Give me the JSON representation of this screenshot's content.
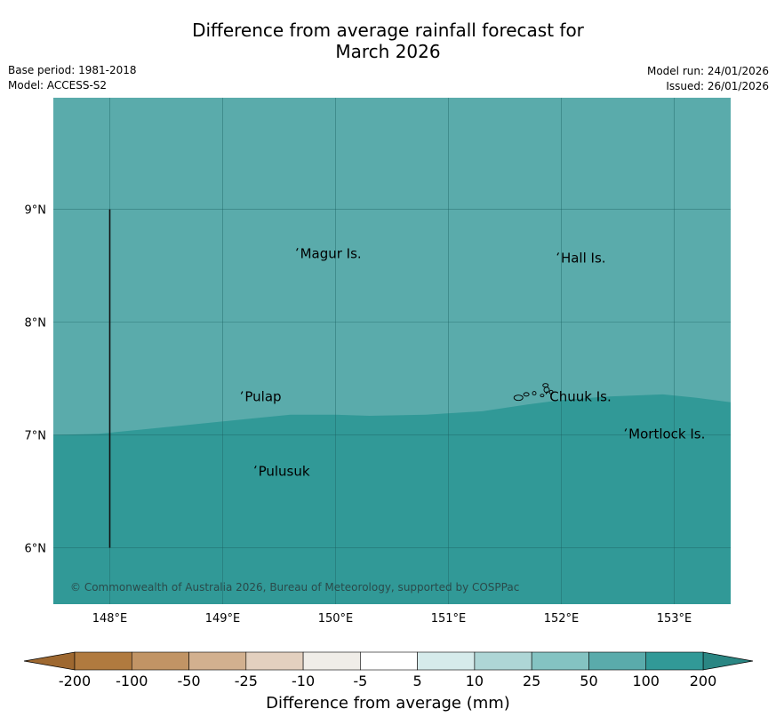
{
  "header": {
    "title_line1": "Difference from average rainfall forecast for",
    "title_line2": "March 2026",
    "base_period": "Base period: 1981-2018",
    "model": "Model: ACCESS-S2",
    "model_run": "Model run: 24/01/2026",
    "issued": "Issued: 26/01/2026"
  },
  "map": {
    "copyright": "© Commonwealth of Australia 2026, Bureau of Meteorology, supported by COSPPac",
    "lon_ticks": [
      {
        "lon": 148,
        "label": "148°E"
      },
      {
        "lon": 149,
        "label": "149°E"
      },
      {
        "lon": 150,
        "label": "150°E"
      },
      {
        "lon": 151,
        "label": "151°E"
      },
      {
        "lon": 152,
        "label": "152°E"
      },
      {
        "lon": 153,
        "label": "153°E"
      }
    ],
    "lat_ticks": [
      {
        "lat": 9,
        "label": "9°N"
      },
      {
        "lat": 8,
        "label": "8°N"
      },
      {
        "lat": 7,
        "label": "7°N"
      },
      {
        "lat": 6,
        "label": "6°N"
      }
    ],
    "places": [
      {
        "name": "Magur Is.",
        "lon": 149.67,
        "lat": 8.57
      },
      {
        "name": "Hall Is.",
        "lon": 151.98,
        "lat": 8.53
      },
      {
        "name": "Pulap",
        "lon": 149.18,
        "lat": 7.3
      },
      {
        "name": "Chuuk Is.",
        "lon": 151.88,
        "lat": 7.3
      },
      {
        "name": "Mortlock Is.",
        "lon": 152.58,
        "lat": 6.97
      },
      {
        "name": "Pulusuk",
        "lon": 149.3,
        "lat": 6.64
      }
    ],
    "zone_colors": {
      "upper": "#5aabab",
      "lower": "#319997"
    },
    "boundary_line": {
      "lon": 148,
      "lat_from": 6,
      "lat_to": 9
    }
  },
  "colorbar": {
    "label": "Difference from average (mm)",
    "ticks": [
      "-200",
      "-100",
      "-50",
      "-25",
      "-10",
      "-5",
      "5",
      "10",
      "25",
      "50",
      "100",
      "200"
    ],
    "colors": [
      "#b07a3f",
      "#c19465",
      "#d2b08f",
      "#e3d0bf",
      "#f0ede8",
      "#ffffff",
      "#d6ebeb",
      "#aed6d6",
      "#84c3c2",
      "#5aabab",
      "#319997"
    ],
    "under_color": "#9e6830",
    "over_color": "#2a8683"
  }
}
